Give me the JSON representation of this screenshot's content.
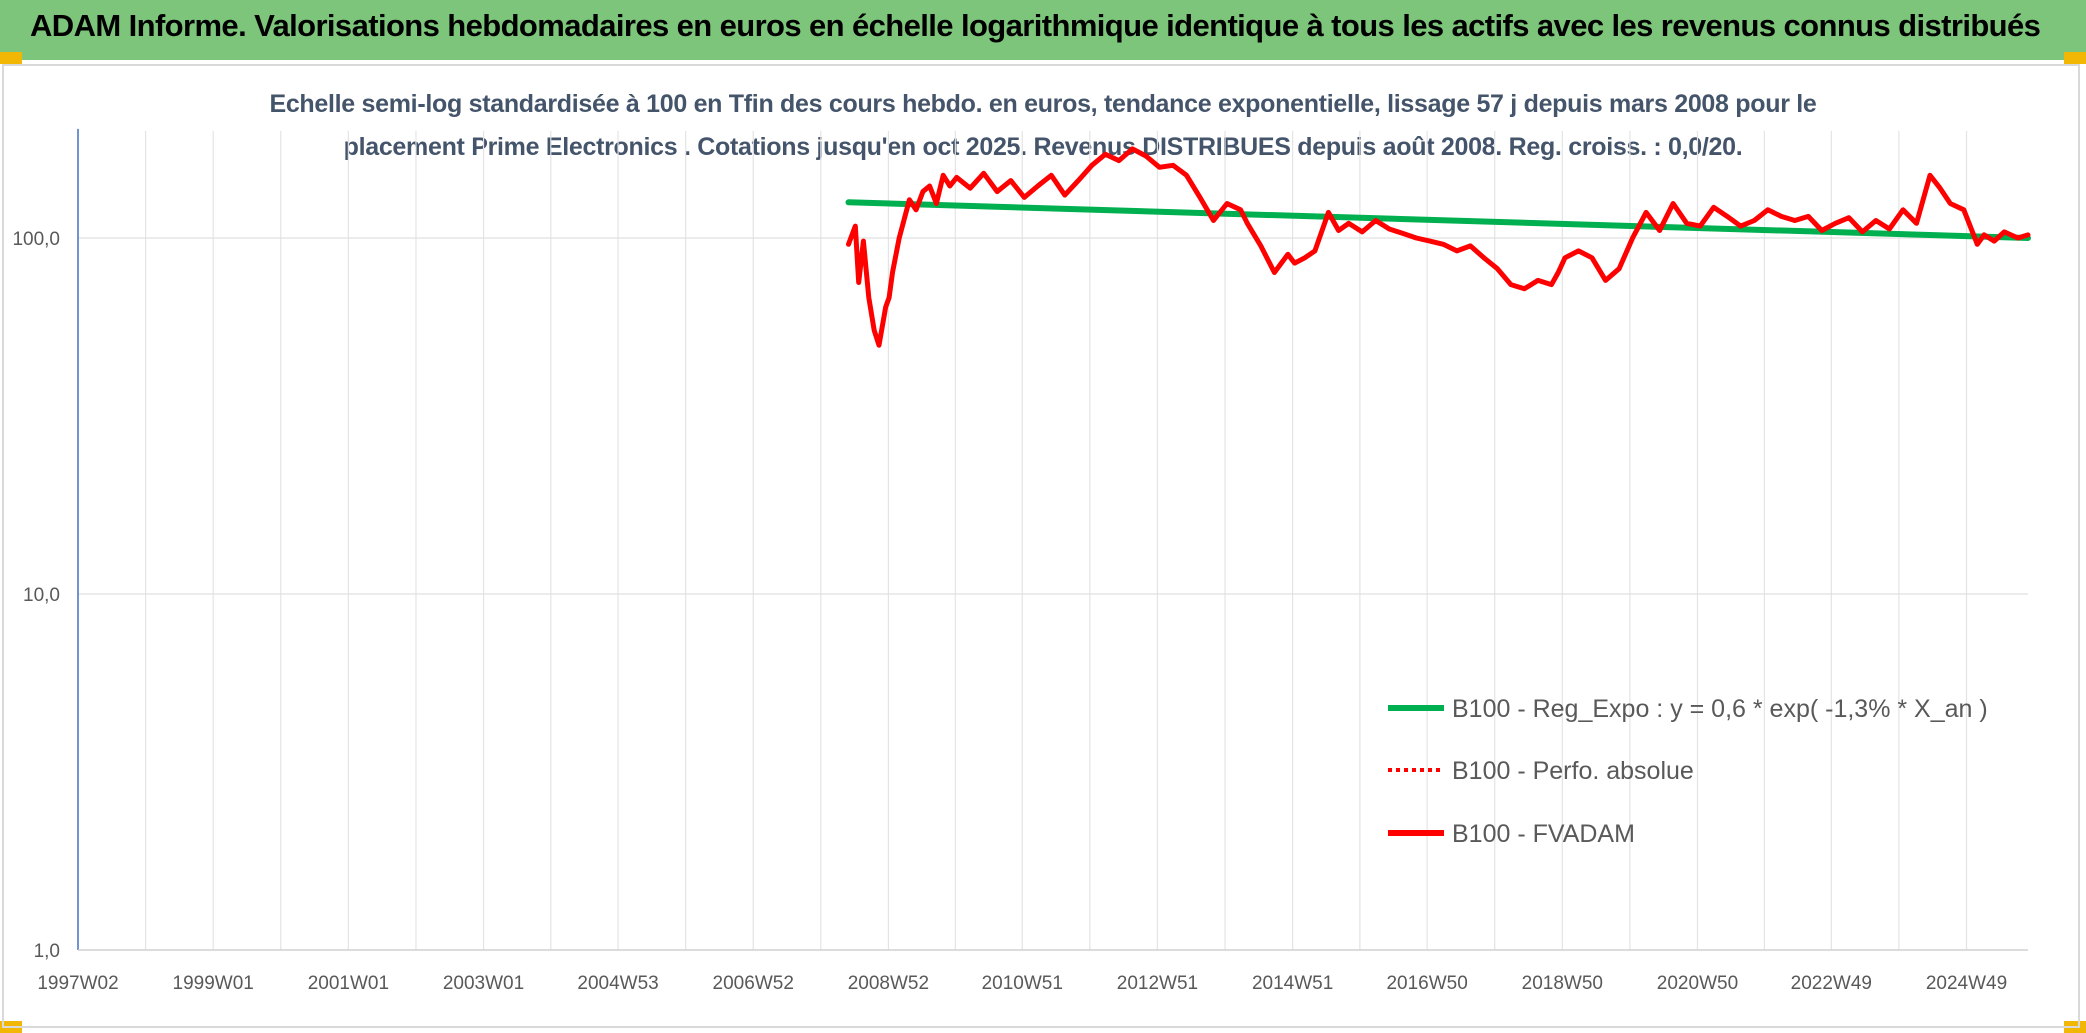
{
  "header": {
    "title": "ADAM Informe. Valorisations hebdomadaires en euros en échelle logarithmique identique à tous les actifs avec les revenus connus distribués"
  },
  "colors": {
    "header_bg": "#7dc57a",
    "regression": "#00b050",
    "fvadam": "#ff0000",
    "perfo": "#ff0000",
    "subtitle": "#44546a"
  },
  "chart_data": {
    "type": "line",
    "title_line1": "Echelle semi-log standardisée à 100 en Tfin des cours hebdo. en euros, tendance exponentielle, lissage 57 j depuis mars 2008 pour le",
    "title_line2": "placement Prime Electronics . Cotations jusqu'en oct 2025. Revenus DISTRIBUES depuis août 2008. Reg. croiss. : 0,0/20.",
    "y_scale": "log",
    "ylim": [
      1,
      200
    ],
    "y_ticks": [
      1,
      10,
      100
    ],
    "y_tick_labels": [
      "1,0",
      "10,0",
      "100,0"
    ],
    "xlim": [
      1997.0,
      2025.85
    ],
    "x_ticks": [
      1997.0,
      1999.0,
      2001.0,
      2003.0,
      2004.99,
      2006.99,
      2008.99,
      2010.97,
      2012.97,
      2014.97,
      2016.96,
      2018.96,
      2020.96,
      2022.94,
      2024.94
    ],
    "x_tick_labels": [
      "1997W02",
      "1999W01",
      "2001W01",
      "2003W01",
      "2004W53",
      "2006W52",
      "2008W52",
      "2010W51",
      "2012W51",
      "2014W51",
      "2016W50",
      "2018W50",
      "2020W50",
      "2022W49",
      "2024W49"
    ],
    "grid": "vertical and horizontal",
    "legend_position": "bottom-right",
    "legend": [
      {
        "label": "B100 - Reg_Expo : y = 0,6 * exp( -1,3% *  X_an )",
        "style": "solid",
        "color": "#00b050"
      },
      {
        "label": "B100 - Perfo. absolue",
        "style": "dotted",
        "color": "#ff0000"
      },
      {
        "label": "B100 - FVADAM",
        "style": "solid",
        "color": "#ff0000"
      }
    ],
    "series": [
      {
        "name": "B100 - Reg_Expo : y = 0,6 * exp( -1,3% *  X_an )",
        "x": [
          2008.4,
          2025.85
        ],
        "y": [
          126,
          100
        ]
      },
      {
        "name": "B100 - FVADAM",
        "x": [
          2008.4,
          2008.5,
          2008.55,
          2008.62,
          2008.7,
          2008.78,
          2008.85,
          2008.95,
          2009.0,
          2009.05,
          2009.15,
          2009.3,
          2009.4,
          2009.5,
          2009.6,
          2009.7,
          2009.8,
          2009.9,
          2010.0,
          2010.2,
          2010.4,
          2010.6,
          2010.8,
          2011.0,
          2011.2,
          2011.4,
          2011.6,
          2011.8,
          2012.0,
          2012.2,
          2012.4,
          2012.6,
          2012.8,
          2013.0,
          2013.2,
          2013.4,
          2013.6,
          2013.8,
          2014.0,
          2014.2,
          2014.3,
          2014.5,
          2014.7,
          2014.9,
          2015.0,
          2015.15,
          2015.3,
          2015.5,
          2015.65,
          2015.8,
          2016.0,
          2016.2,
          2016.4,
          2016.6,
          2016.8,
          2017.0,
          2017.2,
          2017.4,
          2017.6,
          2017.8,
          2018.0,
          2018.2,
          2018.4,
          2018.6,
          2018.8,
          2018.9,
          2019.0,
          2019.2,
          2019.4,
          2019.6,
          2019.8,
          2020.0,
          2020.2,
          2020.4,
          2020.6,
          2020.8,
          2021.0,
          2021.2,
          2021.4,
          2021.6,
          2021.8,
          2022.0,
          2022.2,
          2022.4,
          2022.6,
          2022.8,
          2023.0,
          2023.2,
          2023.4,
          2023.6,
          2023.8,
          2024.0,
          2024.2,
          2024.4,
          2024.55,
          2024.7,
          2024.9,
          2025.1,
          2025.2,
          2025.35,
          2025.5,
          2025.7,
          2025.85
        ],
        "y": [
          96,
          108,
          75,
          98,
          68,
          55,
          50,
          64,
          68,
          80,
          100,
          128,
          120,
          135,
          140,
          125,
          150,
          140,
          148,
          138,
          152,
          135,
          145,
          130,
          140,
          150,
          132,
          145,
          160,
          172,
          165,
          178,
          170,
          158,
          160,
          150,
          130,
          112,
          125,
          120,
          110,
          95,
          80,
          90,
          85,
          88,
          92,
          118,
          105,
          110,
          104,
          112,
          106,
          103,
          100,
          98,
          96,
          92,
          95,
          88,
          82,
          74,
          72,
          76,
          74,
          80,
          88,
          92,
          88,
          76,
          82,
          100,
          118,
          105,
          125,
          110,
          108,
          122,
          115,
          108,
          112,
          120,
          115,
          112,
          115,
          105,
          110,
          114,
          104,
          112,
          106,
          120,
          110,
          150,
          138,
          125,
          120,
          96,
          102,
          98,
          104,
          100,
          102
        ]
      }
    ]
  }
}
